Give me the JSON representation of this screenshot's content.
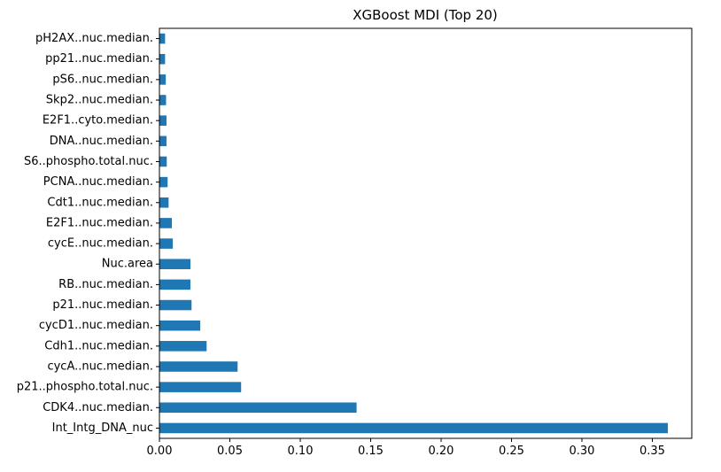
{
  "chart_data": {
    "type": "bar",
    "orientation": "horizontal",
    "title": "XGBoost MDI (Top 20)",
    "xlabel": "",
    "ylabel": "",
    "xlim": [
      0,
      0.378
    ],
    "grid": false,
    "legend": "none",
    "bar_color": "#1f77b4",
    "x_ticks": [
      "0.00",
      "0.05",
      "0.10",
      "0.15",
      "0.20",
      "0.25",
      "0.30",
      "0.35"
    ],
    "categories": [
      "pH2AX..nuc.median.",
      "pp21..nuc.median.",
      "pS6..nuc.median.",
      "Skp2..nuc.median.",
      "E2F1..cyto.median.",
      "DNA..nuc.median.",
      "S6..phospho.total.nuc.",
      "PCNA..nuc.median.",
      "Cdt1..nuc.median.",
      "E2F1..nuc.median.",
      "cycE..nuc.median.",
      "Nuc.area",
      "RB..nuc.median.",
      "p21..nuc.median.",
      "cycD1..nuc.median.",
      "Cdh1..nuc.median.",
      "cycA..nuc.median.",
      "p21..phospho.total.nuc.",
      "CDK4..nuc.median.",
      "Int_Intg_DNA_nuc"
    ],
    "values": [
      0.004,
      0.004,
      0.0045,
      0.0047,
      0.005,
      0.005,
      0.0052,
      0.0058,
      0.0065,
      0.0088,
      0.0095,
      0.022,
      0.022,
      0.0228,
      0.029,
      0.0335,
      0.0555,
      0.058,
      0.14,
      0.361
    ]
  }
}
